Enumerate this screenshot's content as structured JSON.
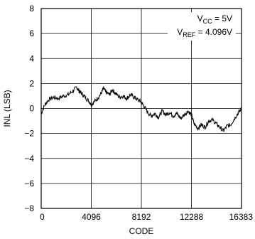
{
  "chart_data": {
    "type": "line",
    "title": "",
    "xlabel": "CODE",
    "ylabel": "INL (LSB)",
    "xlim": [
      0,
      16383
    ],
    "ylim": [
      -8,
      8
    ],
    "x_ticks": [
      "0",
      "4096",
      "8192",
      "12288",
      "16383"
    ],
    "y_ticks": [
      "8",
      "6",
      "4",
      "2",
      "0",
      "−2",
      "−4",
      "−6",
      "−8"
    ],
    "grid": true,
    "annotation": {
      "line1_main": "V",
      "line1_sub": "CC",
      "line1_rest": " = 5V",
      "line2_main": "V",
      "line2_sub": "REF",
      "line2_rest": " = 4.096V"
    },
    "series": [
      {
        "x": [
          0,
          300,
          600,
          1000,
          1400,
          1800,
          2200,
          2600,
          2900,
          3100,
          3300,
          3600,
          3900,
          4096,
          4300,
          4600,
          4900,
          5100,
          5300,
          5600,
          5800,
          6100,
          6400,
          6700,
          7000,
          7300,
          7600,
          7900,
          8192,
          8400,
          8700,
          9000,
          9300,
          9600,
          9900,
          10200,
          10500,
          10800,
          11100,
          11400,
          11700,
          12000,
          12288,
          12500,
          12800,
          13100,
          13400,
          13700,
          14000,
          14300,
          14600,
          14900,
          15200,
          15500,
          15800,
          16100,
          16383
        ],
        "y": [
          -0.4,
          0.3,
          0.7,
          0.9,
          0.8,
          1.0,
          1.1,
          1.4,
          1.7,
          1.4,
          1.2,
          0.9,
          0.6,
          0.3,
          0.5,
          0.8,
          1.2,
          1.6,
          1.3,
          1.1,
          1.5,
          1.2,
          0.9,
          1.0,
          0.8,
          1.1,
          0.9,
          0.7,
          0.5,
          0.2,
          -0.3,
          -0.6,
          -0.4,
          -0.7,
          -0.2,
          -0.5,
          -0.3,
          -0.6,
          -0.4,
          -0.8,
          -0.5,
          -0.2,
          -0.5,
          -1.2,
          -1.6,
          -1.3,
          -1.5,
          -1.0,
          -0.9,
          -1.2,
          -1.5,
          -1.8,
          -1.4,
          -1.3,
          -0.8,
          -0.4,
          0.0
        ]
      }
    ]
  }
}
